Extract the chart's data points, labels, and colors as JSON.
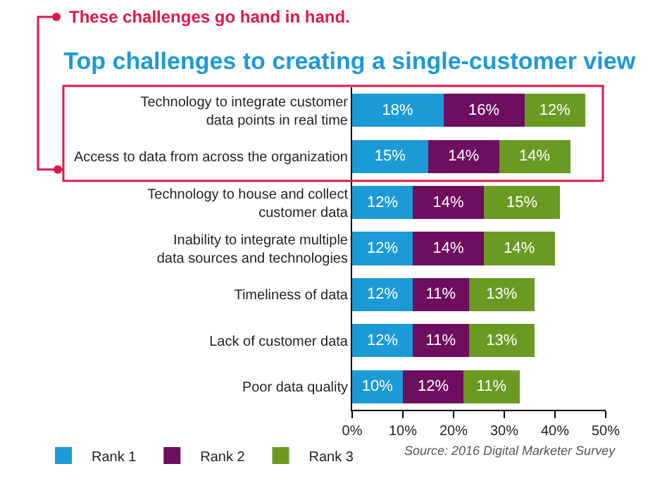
{
  "chart_data": {
    "type": "bar",
    "orientation": "horizontal",
    "stacked": true,
    "title": "Top challenges to creating a single-customer view",
    "categories": [
      "Technology to integrate customer data points in real time",
      "Access to data from across the organization",
      "Technology to house and collect customer data",
      "Inability to integrate multiple data sources and technologies",
      "Timeliness of data",
      "Lack of customer data",
      "Poor data quality"
    ],
    "series": [
      {
        "name": "Rank 1",
        "color": "#1b9ad6",
        "values": [
          18,
          15,
          12,
          12,
          12,
          12,
          10
        ],
        "value_labels": [
          "18%",
          "15%",
          "12%",
          "12%",
          "12%",
          "12%",
          "10%"
        ]
      },
      {
        "name": "Rank 2",
        "color": "#6e0e5e",
        "values": [
          16,
          14,
          14,
          14,
          11,
          11,
          12
        ],
        "value_labels": [
          "16%",
          "14%",
          "14%",
          "14%",
          "11%",
          "11%",
          "12%"
        ]
      },
      {
        "name": "Rank 3",
        "color": "#6a9a22",
        "values": [
          12,
          14,
          15,
          14,
          13,
          13,
          11
        ],
        "value_labels": [
          "12%",
          "14%",
          "15%",
          "14%",
          "13%",
          "13%",
          "11%"
        ]
      }
    ],
    "xlim": [
      0,
      50
    ],
    "xticks": [
      {
        "value": 0,
        "label": "0%"
      },
      {
        "value": 10,
        "label": "10%"
      },
      {
        "value": 20,
        "label": "20%"
      },
      {
        "value": 30,
        "label": "30%"
      },
      {
        "value": 40,
        "label": "40%"
      },
      {
        "value": 50,
        "label": "50%"
      }
    ],
    "annotations": [
      "These challenges go hand in hand.",
      "Source: 2016 Digital Marketer Survey"
    ],
    "legend": "bottom left",
    "grid": false
  }
}
